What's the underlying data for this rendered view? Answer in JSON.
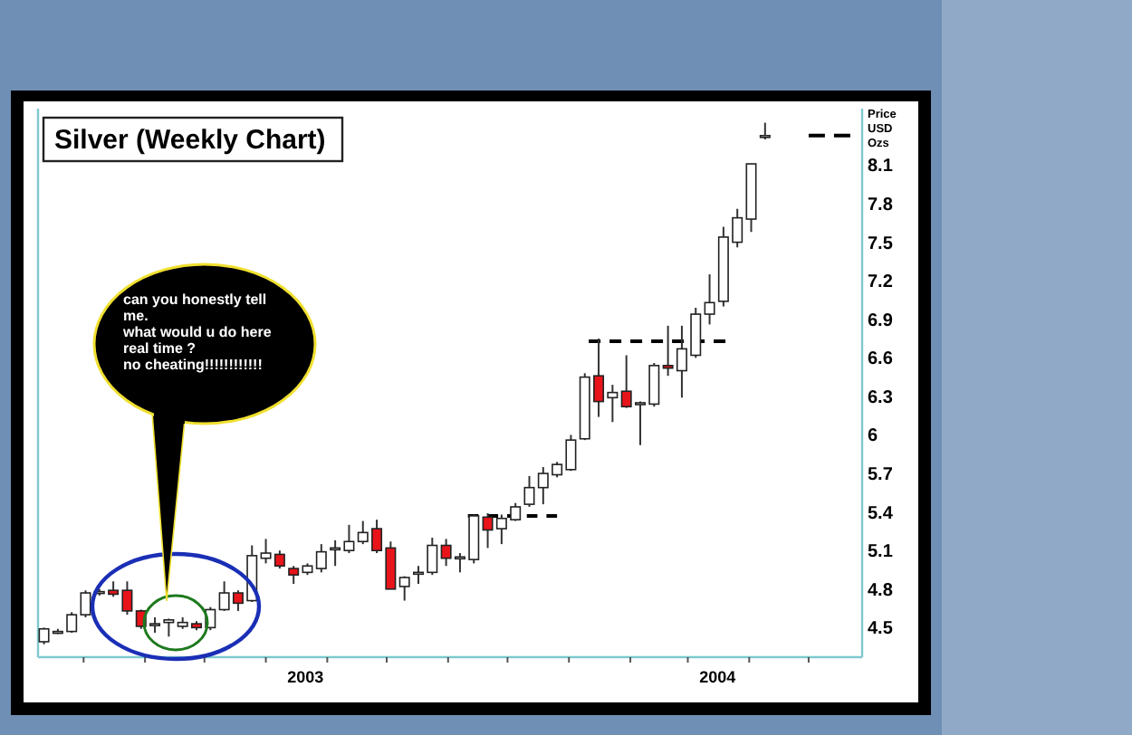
{
  "chart_data": {
    "type": "candlestick",
    "title": "Silver (Weekly Chart)",
    "ylabel": "Price USD Ozs",
    "annotations": [
      "can you honestly tell\nme.\nwhat would u do here\nreal time ?\nno cheating!!!!!!!!!!!!"
    ],
    "xlim": [
      "2003-04-08",
      "2004-05-28"
    ],
    "xticks": [
      {
        "value": "2003-05-01",
        "label": null
      },
      {
        "value": "2003-06-01",
        "label": null
      },
      {
        "value": "2003-07-01",
        "label": null
      },
      {
        "value": "2003-08-01",
        "label": null
      },
      {
        "value": "2003-08-21",
        "label": "2003"
      },
      {
        "value": "2003-09-01",
        "label": null
      },
      {
        "value": "2003-10-01",
        "label": null
      },
      {
        "value": "2003-11-01",
        "label": null
      },
      {
        "value": "2003-12-01",
        "label": null
      },
      {
        "value": "2004-01-01",
        "label": null
      },
      {
        "value": "2004-02-01",
        "label": null
      },
      {
        "value": "2004-03-01",
        "label": null
      },
      {
        "value": "2004-03-16",
        "label": "2004"
      },
      {
        "value": "2004-04-01",
        "label": null
      },
      {
        "value": "2004-05-01",
        "label": null
      }
    ],
    "ylim": [
      4.27,
      8.54
    ],
    "yticks": [
      4.5,
      4.8,
      5.1,
      5.4,
      5.7,
      6,
      6.3,
      6.6,
      6.9,
      7.2,
      7.5,
      7.8,
      8.1
    ],
    "grid": false,
    "series": [
      {
        "colors": [
          "#ffffff",
          "#ffffff",
          "#ffffff",
          "#ffffff",
          "#ffffff",
          "#e8141a",
          "#e8141a",
          "#e8141a",
          "#ffffff",
          "#ffffff",
          "#ffffff",
          "#e8141a",
          "#ffffff",
          "#ffffff",
          "#e8141a",
          "#ffffff",
          "#ffffff",
          "#e8141a",
          "#e8141a",
          "#ffffff",
          "#ffffff",
          "#ffffff",
          "#ffffff",
          "#ffffff",
          "#e8141a",
          "#e8141a",
          "#ffffff",
          "#ffffff",
          "#ffffff",
          "#e8141a",
          "#ffffff",
          "#ffffff",
          "#e8141a",
          "#ffffff",
          "#ffffff",
          "#ffffff",
          "#ffffff",
          "#ffffff",
          "#ffffff",
          "#ffffff",
          "#e8141a",
          "#ffffff",
          "#e8141a",
          "#ffffff",
          "#ffffff",
          "#e8141a",
          "#ffffff",
          "#ffffff",
          "#ffffff",
          "#ffffff",
          "#ffffff",
          "#ffffff",
          "#ffffff"
        ],
        "x": [
          "2003-04-11",
          "2003-04-18",
          "2003-04-25",
          "2003-05-02",
          "2003-05-09",
          "2003-05-16",
          "2003-05-23",
          "2003-05-30",
          "2003-06-06",
          "2003-06-13",
          "2003-06-20",
          "2003-06-27",
          "2003-07-04",
          "2003-07-11",
          "2003-07-18",
          "2003-07-25",
          "2003-08-01",
          "2003-08-08",
          "2003-08-15",
          "2003-08-22",
          "2003-08-29",
          "2003-09-05",
          "2003-09-12",
          "2003-09-19",
          "2003-09-26",
          "2003-10-03",
          "2003-10-10",
          "2003-10-17",
          "2003-10-24",
          "2003-10-31",
          "2003-11-07",
          "2003-11-14",
          "2003-11-21",
          "2003-11-28",
          "2003-12-05",
          "2003-12-12",
          "2003-12-19",
          "2003-12-26",
          "2004-01-02",
          "2004-01-09",
          "2004-01-16",
          "2004-01-23",
          "2004-01-30",
          "2004-02-06",
          "2004-02-13",
          "2004-02-20",
          "2004-02-27",
          "2004-03-05",
          "2004-03-12",
          "2004-03-19",
          "2004-03-26",
          "2004-04-02",
          "2004-04-09"
        ],
        "ohlc": [
          [
            4.39,
            4.5,
            4.37,
            4.49
          ],
          [
            4.47,
            4.49,
            4.45,
            4.47
          ],
          [
            4.47,
            4.62,
            4.46,
            4.6
          ],
          [
            4.6,
            4.79,
            4.58,
            4.77
          ],
          [
            4.77,
            4.8,
            4.75,
            4.78
          ],
          [
            4.79,
            4.86,
            4.74,
            4.76
          ],
          [
            4.79,
            4.86,
            4.6,
            4.63
          ],
          [
            4.63,
            4.64,
            4.49,
            4.51
          ],
          [
            4.52,
            4.58,
            4.46,
            4.53
          ],
          [
            4.54,
            4.57,
            4.43,
            4.56
          ],
          [
            4.51,
            4.58,
            4.49,
            4.54
          ],
          [
            4.53,
            4.55,
            4.48,
            4.5
          ],
          [
            4.5,
            4.66,
            4.48,
            4.64
          ],
          [
            4.64,
            4.86,
            4.63,
            4.77
          ],
          [
            4.77,
            4.79,
            4.63,
            4.69
          ],
          [
            4.71,
            5.14,
            4.7,
            5.06
          ],
          [
            5.04,
            5.19,
            5.0,
            5.08
          ],
          [
            5.07,
            5.1,
            4.96,
            4.98
          ],
          [
            4.96,
            4.98,
            4.84,
            4.91
          ],
          [
            4.93,
            5.0,
            4.91,
            4.98
          ],
          [
            4.96,
            5.15,
            4.93,
            5.09
          ],
          [
            5.11,
            5.18,
            4.98,
            5.12
          ],
          [
            5.1,
            5.3,
            5.08,
            5.17
          ],
          [
            5.17,
            5.33,
            5.15,
            5.24
          ],
          [
            5.27,
            5.34,
            5.08,
            5.1
          ],
          [
            5.12,
            5.17,
            4.8,
            4.8
          ],
          [
            4.82,
            4.9,
            4.71,
            4.89
          ],
          [
            4.92,
            4.98,
            4.84,
            4.93
          ],
          [
            4.93,
            5.2,
            4.91,
            5.14
          ],
          [
            5.14,
            5.19,
            4.98,
            5.04
          ],
          [
            5.04,
            5.08,
            4.93,
            5.05
          ],
          [
            5.03,
            5.38,
            5.0,
            5.37
          ],
          [
            5.36,
            5.39,
            5.12,
            5.26
          ],
          [
            5.27,
            5.38,
            5.15,
            5.35
          ],
          [
            5.34,
            5.47,
            5.33,
            5.44
          ],
          [
            5.46,
            5.68,
            5.44,
            5.59
          ],
          [
            5.59,
            5.75,
            5.46,
            5.7
          ],
          [
            5.69,
            5.79,
            5.67,
            5.77
          ],
          [
            5.73,
            6.0,
            5.72,
            5.96
          ],
          [
            5.97,
            6.48,
            5.96,
            6.45
          ],
          [
            6.46,
            6.75,
            6.14,
            6.26
          ],
          [
            6.29,
            6.39,
            6.1,
            6.33
          ],
          [
            6.34,
            6.62,
            6.21,
            6.22
          ],
          [
            6.24,
            6.26,
            5.92,
            6.25
          ],
          [
            6.24,
            6.56,
            6.22,
            6.54
          ],
          [
            6.54,
            6.85,
            6.46,
            6.52
          ],
          [
            6.5,
            6.85,
            6.29,
            6.67
          ],
          [
            6.62,
            6.99,
            6.6,
            6.94
          ],
          [
            6.94,
            7.25,
            6.86,
            7.03
          ],
          [
            7.04,
            7.62,
            7.0,
            7.54
          ],
          [
            7.5,
            7.76,
            7.46,
            7.69
          ],
          [
            7.68,
            8.11,
            7.58,
            8.11
          ],
          [
            8.33,
            8.43,
            8.3,
            8.33
          ]
        ]
      },
      {
        "type": "line",
        "color": "#000000",
        "line_style": "dashed",
        "x": [
          "2003-11-11",
          "2003-12-26"
        ],
        "values": [
          5.37,
          5.37
        ]
      },
      {
        "type": "line",
        "color": "#000000",
        "line_style": "dashed",
        "x": [
          "2004-01-11",
          "2004-03-20"
        ],
        "values": [
          6.73,
          6.73
        ]
      },
      {
        "type": "line",
        "color": "#000000",
        "line_style": "dashed",
        "x": [
          "2004-05-01",
          "2004-05-22"
        ],
        "values": [
          8.33,
          8.33
        ]
      }
    ]
  }
}
